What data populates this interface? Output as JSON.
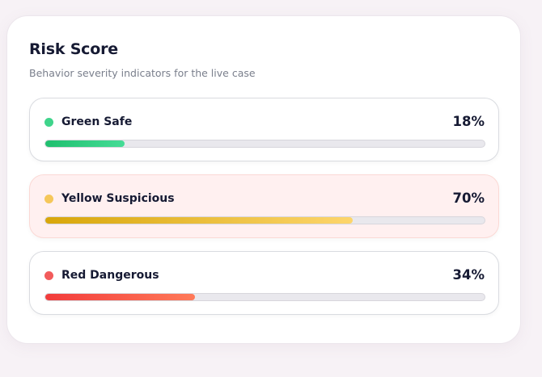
{
  "panel": {
    "title": "Risk Score",
    "subtitle": "Behavior severity indicators for the live case"
  },
  "indicators": [
    {
      "label": "Green Safe",
      "percent_text": "18%",
      "value": 18,
      "color": "#3fd48b",
      "highlighted": false
    },
    {
      "label": "Yellow Suspicious",
      "percent_text": "70%",
      "value": 70,
      "color": "#f5c75a",
      "highlighted": true
    },
    {
      "label": "Red Dangerous",
      "percent_text": "34%",
      "value": 34,
      "color": "#f25b5b",
      "highlighted": false
    }
  ]
}
